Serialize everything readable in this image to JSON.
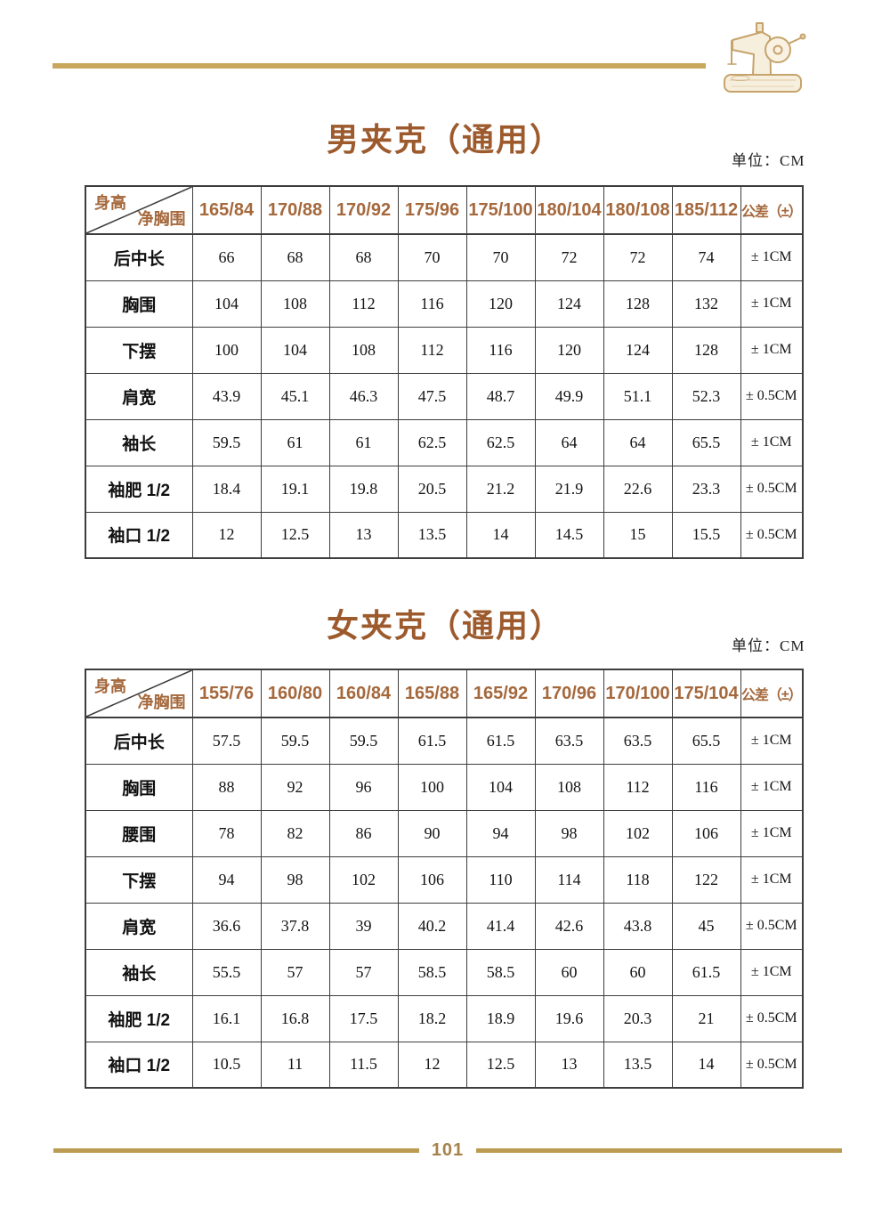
{
  "page": {
    "footer": {
      "page_number": "101"
    }
  },
  "colors": {
    "gold_rule": "#c9a75d",
    "footer_rule": "#bb9a52",
    "title_brown": "#9c5a2d",
    "table_header_brown": "#a5683c",
    "page_number_gold": "#a6824a",
    "table_border": "#3d3d3d"
  },
  "icons": {
    "header_illustration": "sewing-machine-icon"
  },
  "tables": [
    {
      "id": "mens-jacket",
      "title": "男夹克（通用）",
      "unit": "单位：CM",
      "corner_top": "身高",
      "corner_bottom": "净胸围",
      "tolerance_header": "公差（±）",
      "columns": [
        "165/84",
        "170/88",
        "170/92",
        "175/96",
        "175/100",
        "180/104",
        "180/108",
        "185/112"
      ],
      "rows": [
        {
          "label": "后中长",
          "values": [
            "66",
            "68",
            "68",
            "70",
            "70",
            "72",
            "72",
            "74"
          ],
          "tolerance": "± 1CM"
        },
        {
          "label": "胸围",
          "values": [
            "104",
            "108",
            "112",
            "116",
            "120",
            "124",
            "128",
            "132"
          ],
          "tolerance": "± 1CM"
        },
        {
          "label": "下摆",
          "values": [
            "100",
            "104",
            "108",
            "112",
            "116",
            "120",
            "124",
            "128"
          ],
          "tolerance": "± 1CM"
        },
        {
          "label": "肩宽",
          "values": [
            "43.9",
            "45.1",
            "46.3",
            "47.5",
            "48.7",
            "49.9",
            "51.1",
            "52.3"
          ],
          "tolerance": "± 0.5CM"
        },
        {
          "label": "袖长",
          "values": [
            "59.5",
            "61",
            "61",
            "62.5",
            "62.5",
            "64",
            "64",
            "65.5"
          ],
          "tolerance": "± 1CM"
        },
        {
          "label": "袖肥 1/2",
          "values": [
            "18.4",
            "19.1",
            "19.8",
            "20.5",
            "21.2",
            "21.9",
            "22.6",
            "23.3"
          ],
          "tolerance": "± 0.5CM"
        },
        {
          "label": "袖口 1/2",
          "values": [
            "12",
            "12.5",
            "13",
            "13.5",
            "14",
            "14.5",
            "15",
            "15.5"
          ],
          "tolerance": "± 0.5CM"
        }
      ]
    },
    {
      "id": "womens-jacket",
      "title": "女夹克（通用）",
      "unit": "单位：CM",
      "corner_top": "身高",
      "corner_bottom": "净胸围",
      "tolerance_header": "公差（±）",
      "columns": [
        "155/76",
        "160/80",
        "160/84",
        "165/88",
        "165/92",
        "170/96",
        "170/100",
        "175/104"
      ],
      "rows": [
        {
          "label": "后中长",
          "values": [
            "57.5",
            "59.5",
            "59.5",
            "61.5",
            "61.5",
            "63.5",
            "63.5",
            "65.5"
          ],
          "tolerance": "± 1CM"
        },
        {
          "label": "胸围",
          "values": [
            "88",
            "92",
            "96",
            "100",
            "104",
            "108",
            "112",
            "116"
          ],
          "tolerance": "± 1CM"
        },
        {
          "label": "腰围",
          "values": [
            "78",
            "82",
            "86",
            "90",
            "94",
            "98",
            "102",
            "106"
          ],
          "tolerance": "± 1CM"
        },
        {
          "label": "下摆",
          "values": [
            "94",
            "98",
            "102",
            "106",
            "110",
            "114",
            "118",
            "122"
          ],
          "tolerance": "± 1CM"
        },
        {
          "label": "肩宽",
          "values": [
            "36.6",
            "37.8",
            "39",
            "40.2",
            "41.4",
            "42.6",
            "43.8",
            "45"
          ],
          "tolerance": "± 0.5CM"
        },
        {
          "label": "袖长",
          "values": [
            "55.5",
            "57",
            "57",
            "58.5",
            "58.5",
            "60",
            "60",
            "61.5"
          ],
          "tolerance": "± 1CM"
        },
        {
          "label": "袖肥 1/2",
          "values": [
            "16.1",
            "16.8",
            "17.5",
            "18.2",
            "18.9",
            "19.6",
            "20.3",
            "21"
          ],
          "tolerance": "± 0.5CM"
        },
        {
          "label": "袖口 1/2",
          "values": [
            "10.5",
            "11",
            "11.5",
            "12",
            "12.5",
            "13",
            "13.5",
            "14"
          ],
          "tolerance": "± 0.5CM"
        }
      ]
    }
  ]
}
